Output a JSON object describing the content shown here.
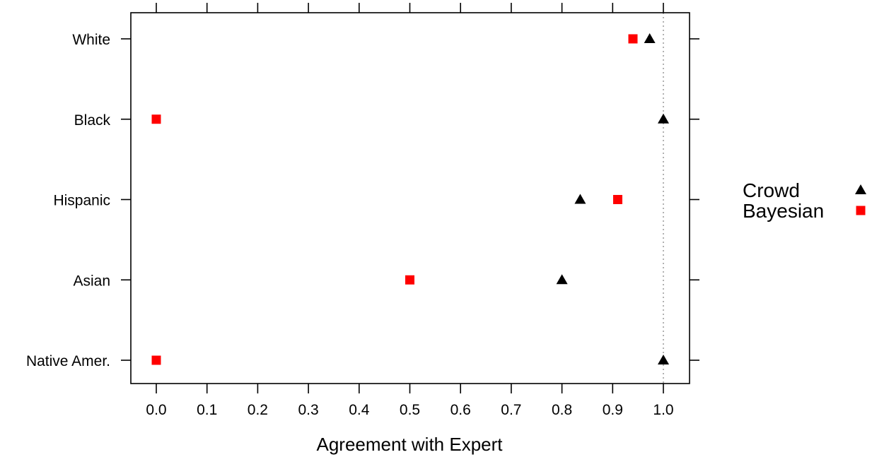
{
  "chart_data": {
    "type": "scatter",
    "title": "",
    "xlabel": "Agreement with Expert",
    "ylabel": "",
    "xlim": [
      -0.05,
      1.05
    ],
    "x_ticks": [
      0.0,
      0.1,
      0.2,
      0.3,
      0.4,
      0.5,
      0.6,
      0.7,
      0.8,
      0.9,
      1.0
    ],
    "x_tick_labels": [
      "0.0",
      "0.1",
      "0.2",
      "0.3",
      "0.4",
      "0.5",
      "0.6",
      "0.7",
      "0.8",
      "0.9",
      "1.0"
    ],
    "categories": [
      "White",
      "Black",
      "Hispanic",
      "Asian",
      "Native Amer."
    ],
    "reference_line": {
      "x": 1.0,
      "style": "dotted",
      "color": "#999999"
    },
    "grid": false,
    "legend_position": "right",
    "series": [
      {
        "name": "Crowd",
        "marker": "triangle",
        "color": "#000000",
        "values": [
          0.973,
          1.0,
          0.836,
          0.8,
          1.0
        ]
      },
      {
        "name": "Bayesian",
        "marker": "square",
        "color": "#ff0000",
        "values": [
          0.94,
          0.0,
          0.91,
          0.5,
          0.0
        ]
      }
    ]
  }
}
